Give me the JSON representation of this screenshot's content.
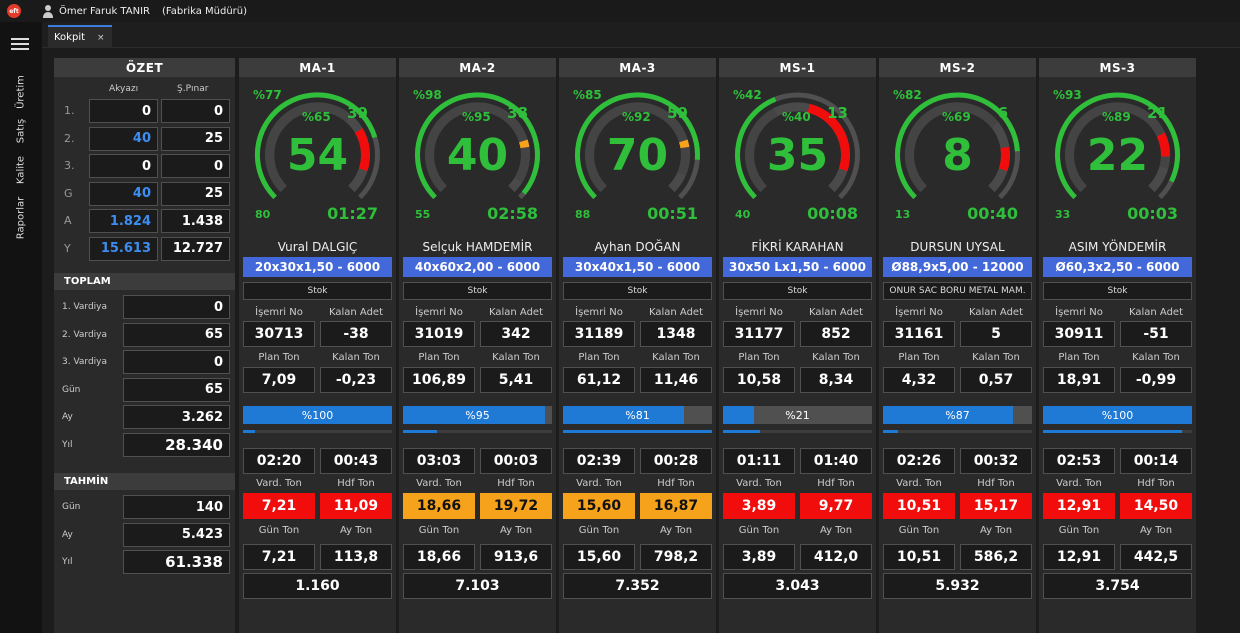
{
  "app": {
    "logo_text": "eft",
    "user_name": "Ömer Faruk TANIR",
    "user_role": "(Fabrika Müdürü)"
  },
  "nav": [
    "Üretim",
    "Satış",
    "Kalite",
    "Raporlar"
  ],
  "tab": {
    "label": "Kokpit",
    "close": "×"
  },
  "summary": {
    "title": "ÖZET",
    "col1": "Akyazı",
    "col2": "Ş.Pınar",
    "rows": [
      {
        "label": "1.",
        "v1": "0",
        "v2": "0",
        "blue": false
      },
      {
        "label": "2.",
        "v1": "40",
        "v2": "25",
        "blue": true
      },
      {
        "label": "3.",
        "v1": "0",
        "v2": "0",
        "blue": false
      },
      {
        "label": "G",
        "v1": "40",
        "v2": "25",
        "blue": true
      },
      {
        "label": "A",
        "v1": "1.824",
        "v2": "1.438",
        "blue": true
      },
      {
        "label": "Y",
        "v1": "15.613",
        "v2": "12.727",
        "blue": true
      }
    ],
    "toplam_title": "TOPLAM",
    "toplam": [
      {
        "label": "1. Vardiya",
        "value": "0"
      },
      {
        "label": "2. Vardiya",
        "value": "65"
      },
      {
        "label": "3. Vardiya",
        "value": "0"
      },
      {
        "label": "Gün",
        "value": "65"
      },
      {
        "label": "Ay",
        "value": "3.262"
      },
      {
        "label": "Yıl",
        "value": "28.340"
      }
    ],
    "tahmin_title": "TAHMİN",
    "tahmin": [
      {
        "label": "Gün",
        "value": "140"
      },
      {
        "label": "Ay",
        "value": "5.423"
      },
      {
        "label": "Yıl",
        "value": "61.338"
      }
    ]
  },
  "labels": {
    "isemri": "İşemri No",
    "kalan_adet": "Kalan Adet",
    "plan_ton": "Plan Ton",
    "kalan_ton": "Kalan Ton",
    "vard_ton": "Vard. Ton",
    "hdf_ton": "Hdf Ton",
    "gun_ton": "Gün Ton",
    "ay_ton": "Ay Ton"
  },
  "colors": {
    "green": "#2fbf3a",
    "red": "#f20d0d",
    "orange": "#f7a21b",
    "blue": "#4368d9",
    "progress": "#1f7ad6"
  },
  "machines": [
    {
      "name": "MA-1",
      "pct_outer": "%77",
      "pct_inner": "%65",
      "small_count": "39",
      "big": "54",
      "left_num": "80",
      "time": "01:27",
      "operator": "Vural DALGIÇ",
      "profile": "20x30x1,50 - 6000",
      "stok": "Stok",
      "isemri": "30713",
      "kalan_adet": "-38",
      "plan_ton": "7,09",
      "kalan_ton": "-0,23",
      "progress_text": "%100",
      "progress": 1.0,
      "thin": 0.08,
      "time1": "02:20",
      "time2": "00:43",
      "vard_ton": "7,21",
      "hdf_ton": "11,09",
      "vard_color": "red",
      "hdf_color": "red",
      "gun_ton": "7,21",
      "ay_ton": "113,8",
      "total": "1.160",
      "outer_frac": 0.77,
      "inner_frac": 0.65,
      "red_from": 0.72,
      "red_to": 0.9,
      "marker": null
    },
    {
      "name": "MA-2",
      "pct_outer": "%98",
      "pct_inner": "%95",
      "small_count": "38",
      "big": "40",
      "left_num": "55",
      "time": "02:58",
      "operator": "Selçuk HAMDEMİR",
      "profile": "40x60x2,00 - 6000",
      "stok": "Stok",
      "isemri": "31019",
      "kalan_adet": "342",
      "plan_ton": "106,89",
      "kalan_ton": "5,41",
      "progress_text": "%95",
      "progress": 0.95,
      "thin": 0.23,
      "time1": "03:03",
      "time2": "00:03",
      "vard_ton": "18,66",
      "hdf_ton": "19,72",
      "vard_color": "orange",
      "hdf_color": "orange",
      "gun_ton": "18,66",
      "ay_ton": "913,6",
      "total": "7.103",
      "outer_frac": 0.98,
      "inner_frac": 0.95,
      "red_from": null,
      "red_to": null,
      "marker": 0.77
    },
    {
      "name": "MA-3",
      "pct_outer": "%85",
      "pct_inner": "%92",
      "small_count": "59",
      "big": "70",
      "left_num": "88",
      "time": "00:51",
      "operator": "Ayhan DOĞAN",
      "profile": "30x40x1,50 - 6000",
      "stok": "Stok",
      "isemri": "31189",
      "kalan_adet": "1348",
      "plan_ton": "61,12",
      "kalan_ton": "11,46",
      "progress_text": "%81",
      "progress": 0.81,
      "thin": 1.0,
      "time1": "02:39",
      "time2": "00:28",
      "vard_ton": "15,60",
      "hdf_ton": "16,87",
      "vard_color": "orange",
      "hdf_color": "orange",
      "gun_ton": "15,60",
      "ay_ton": "798,2",
      "total": "7.352",
      "outer_frac": 0.85,
      "inner_frac": 0.92,
      "red_from": null,
      "red_to": null,
      "marker": 0.77
    },
    {
      "name": "MS-1",
      "pct_outer": "%42",
      "pct_inner": "%40",
      "small_count": "13",
      "big": "35",
      "left_num": "40",
      "time": "00:08",
      "operator": "FİKRİ KARAHAN",
      "profile": "30x50 Lx1,50 - 6000",
      "stok": "Stok",
      "isemri": "31177",
      "kalan_adet": "852",
      "plan_ton": "10,58",
      "kalan_ton": "8,34",
      "progress_text": "%21",
      "progress": 0.21,
      "thin": 0.25,
      "time1": "01:11",
      "time2": "01:40",
      "vard_ton": "3,89",
      "hdf_ton": "9,77",
      "vard_color": "red",
      "hdf_color": "red",
      "gun_ton": "3,89",
      "ay_ton": "412,0",
      "total": "3.043",
      "outer_frac": 0.42,
      "inner_frac": 0.4,
      "red_from": 0.55,
      "red_to": 0.9,
      "marker": null
    },
    {
      "name": "MS-2",
      "pct_outer": "%82",
      "pct_inner": "%69",
      "small_count": "6",
      "big": "8",
      "left_num": "13",
      "time": "00:40",
      "operator": "DURSUN UYSAL",
      "profile": "Ø88,9x5,00 - 12000",
      "stok": "ONUR SAC BORU METAL MAM.",
      "isemri": "31161",
      "kalan_adet": "5",
      "plan_ton": "4,32",
      "kalan_ton": "0,57",
      "progress_text": "%87",
      "progress": 0.87,
      "thin": 0.1,
      "time1": "02:26",
      "time2": "00:32",
      "vard_ton": "10,51",
      "hdf_ton": "15,17",
      "vard_color": "red",
      "hdf_color": "red",
      "gun_ton": "10,51",
      "ay_ton": "586,2",
      "total": "5.932",
      "outer_frac": 0.82,
      "inner_frac": 0.69,
      "red_from": 0.8,
      "red_to": 0.9,
      "marker": null
    },
    {
      "name": "MS-3",
      "pct_outer": "%93",
      "pct_inner": "%89",
      "small_count": "21",
      "big": "22",
      "left_num": "33",
      "time": "00:03",
      "operator": "ASIM  YÖNDEMİR",
      "profile": "Ø60,3x2,50 - 6000",
      "stok": "Stok",
      "isemri": "30911",
      "kalan_adet": "-51",
      "plan_ton": "18,91",
      "kalan_ton": "-0,99",
      "progress_text": "%100",
      "progress": 1.0,
      "thin": 0.93,
      "time1": "02:53",
      "time2": "00:14",
      "vard_ton": "12,91",
      "hdf_ton": "14,50",
      "vard_color": "red",
      "hdf_color": "red",
      "gun_ton": "12,91",
      "ay_ton": "442,5",
      "total": "3.754",
      "outer_frac": 0.93,
      "inner_frac": 0.89,
      "red_from": 0.74,
      "red_to": 0.84,
      "marker": null
    }
  ]
}
